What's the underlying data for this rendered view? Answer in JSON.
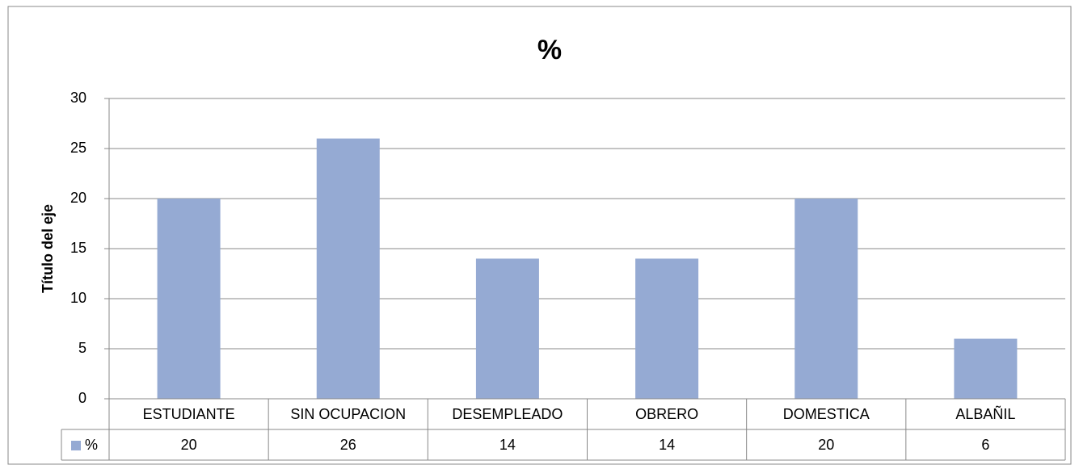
{
  "chart_data": {
    "type": "bar",
    "title": "%",
    "y_label": "Título del eje",
    "categories": [
      "ESTUDIANTE",
      "SIN OCUPACION",
      "DESEMPLEADO",
      "OBRERO",
      "DOMESTICA",
      "ALBAÑIL"
    ],
    "series": [
      {
        "name": "%",
        "color": "#95aad3",
        "values": [
          20,
          26,
          14,
          14,
          20,
          6
        ]
      }
    ],
    "ylim": [
      0,
      30
    ],
    "yticks": [
      0,
      5,
      10,
      15,
      20,
      25,
      30
    ],
    "grid": true,
    "data_table": true
  }
}
